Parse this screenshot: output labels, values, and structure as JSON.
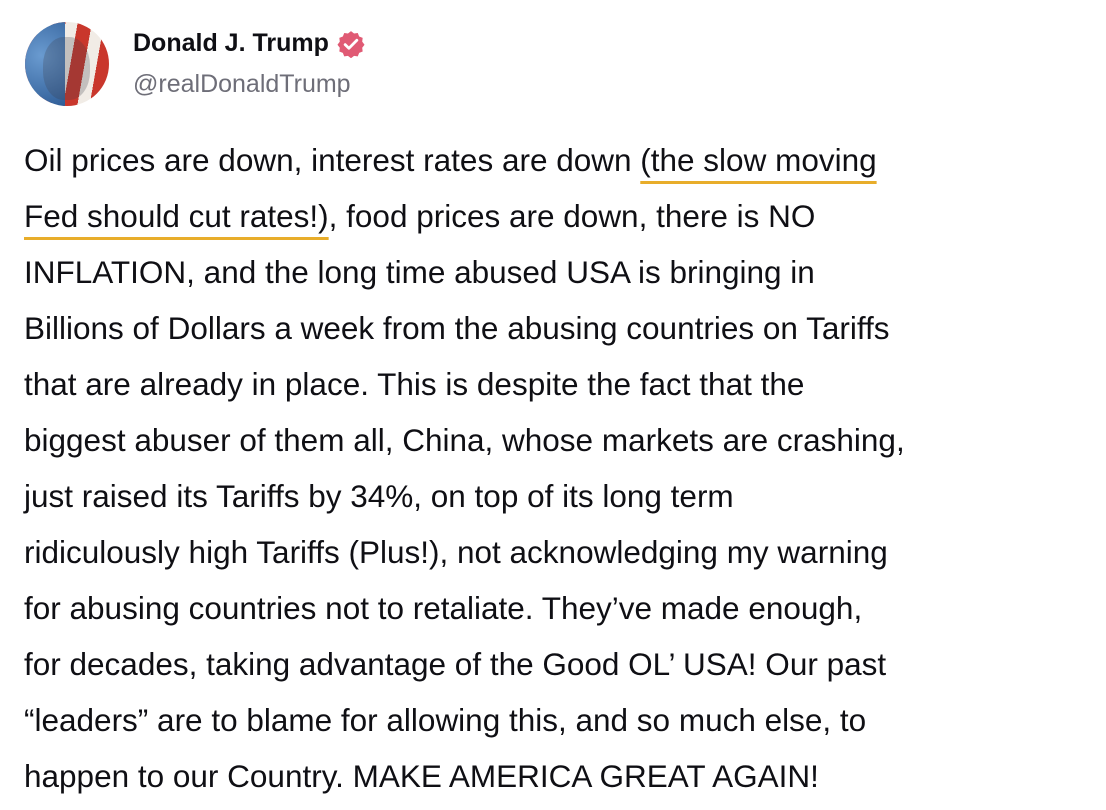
{
  "author": {
    "name": "Donald J. Trump",
    "handle": "@realDonaldTrump",
    "verified_icon": "verified-badge-icon",
    "badge_color": "#e05a74"
  },
  "highlight_color": "#e8ad2a",
  "post": {
    "lines": [
      [
        {
          "t": "Oil prices are down, interest rates are down "
        },
        {
          "t": "(the slow moving",
          "h": true
        }
      ],
      [
        {
          "t": "Fed should cut rates!)",
          "h": true
        },
        {
          "t": ", food prices are down, there is NO"
        }
      ],
      [
        {
          "t": "INFLATION, and the long time abused USA is bringing in"
        }
      ],
      [
        {
          "t": "Billions of Dollars a week from the abusing countries on Tariffs"
        }
      ],
      [
        {
          "t": "that are already in place. This is despite the fact that the"
        }
      ],
      [
        {
          "t": "biggest abuser of them all, China, whose markets are crashing,"
        }
      ],
      [
        {
          "t": "just raised its Tariffs by 34%, on top of its long term"
        }
      ],
      [
        {
          "t": "ridiculously high Tariffs (Plus!), not acknowledging my warning"
        }
      ],
      [
        {
          "t": "for abusing countries not to retaliate. They’ve made enough,"
        }
      ],
      [
        {
          "t": "for decades, taking advantage of the Good OL’ USA! Our past"
        }
      ],
      [
        {
          "t": "“leaders” are to blame for allowing this, and so much else, to"
        }
      ],
      [
        {
          "t": "happen to our Country. MAKE AMERICA GREAT AGAIN!"
        }
      ]
    ]
  }
}
